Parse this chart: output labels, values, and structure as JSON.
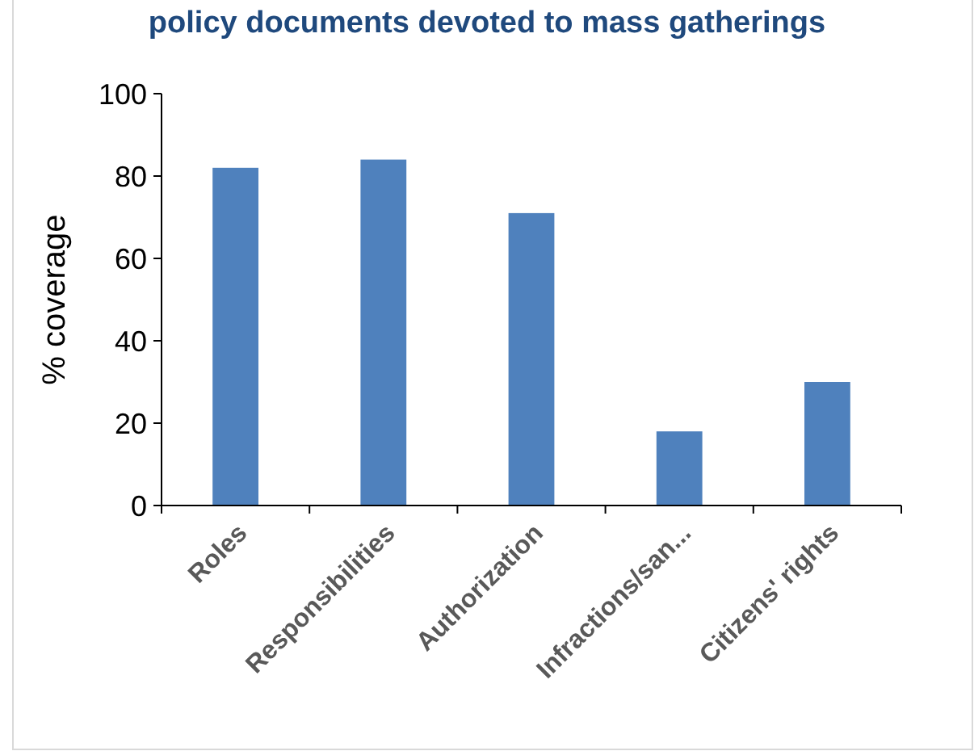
{
  "chart_data": {
    "type": "bar",
    "title": "policy documents devoted to mass gatherings",
    "ylabel": "% coverage",
    "categories": [
      "Roles",
      "Responsibilities",
      "Authorization",
      "Infractions/san...",
      "Citizens' rights"
    ],
    "values": [
      82,
      84,
      71,
      18,
      30
    ],
    "color": "#4f81bd",
    "ylim": [
      0,
      100
    ],
    "yticks": [
      0,
      20,
      40,
      60,
      80,
      100
    ],
    "grid": false
  }
}
